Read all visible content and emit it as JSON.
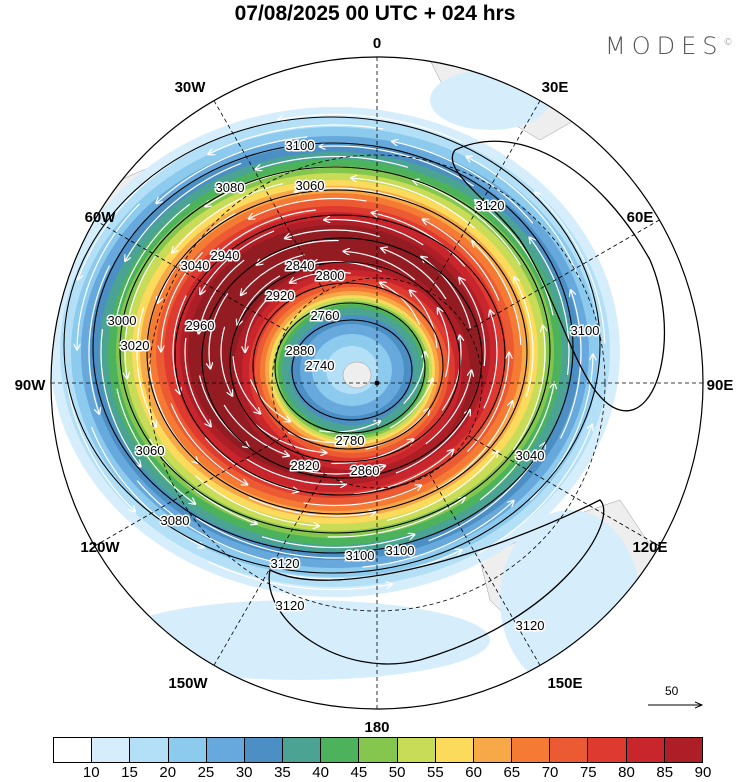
{
  "title": "07/08/2025  00 UTC  + 024 hrs",
  "logo": "MODES",
  "logo_mark": "©",
  "meridian_labels": [
    "0",
    "30E",
    "60E",
    "90E",
    "120E",
    "150E",
    "180",
    "150W",
    "120W",
    "90W",
    "60W",
    "30W"
  ],
  "contour_labels": [
    "3100",
    "3080",
    "3060",
    "3040",
    "3020",
    "3000",
    "2960",
    "2940",
    "2920",
    "2880",
    "2840",
    "2800",
    "2780",
    "2760",
    "2740",
    "2820",
    "2860",
    "3120",
    "3100",
    "3100",
    "3080",
    "3060",
    "3040",
    "3120",
    "3120",
    "3120",
    "3100"
  ],
  "reference_vector": "50",
  "colorbar": {
    "labels": [
      "10",
      "15",
      "20",
      "25",
      "30",
      "35",
      "40",
      "45",
      "50",
      "55",
      "60",
      "65",
      "70",
      "75",
      "80",
      "85",
      "90"
    ],
    "colors": [
      "#ffffff",
      "#d6eefb",
      "#b4e0f7",
      "#8ccaee",
      "#67a9dc",
      "#4b8fc4",
      "#4aa393",
      "#4cb35c",
      "#84c64e",
      "#c9dc58",
      "#fbda5c",
      "#f8a947",
      "#f57a33",
      "#ec5a33",
      "#df3a30",
      "#c8252c",
      "#ae1e27",
      "#921c22"
    ]
  }
}
